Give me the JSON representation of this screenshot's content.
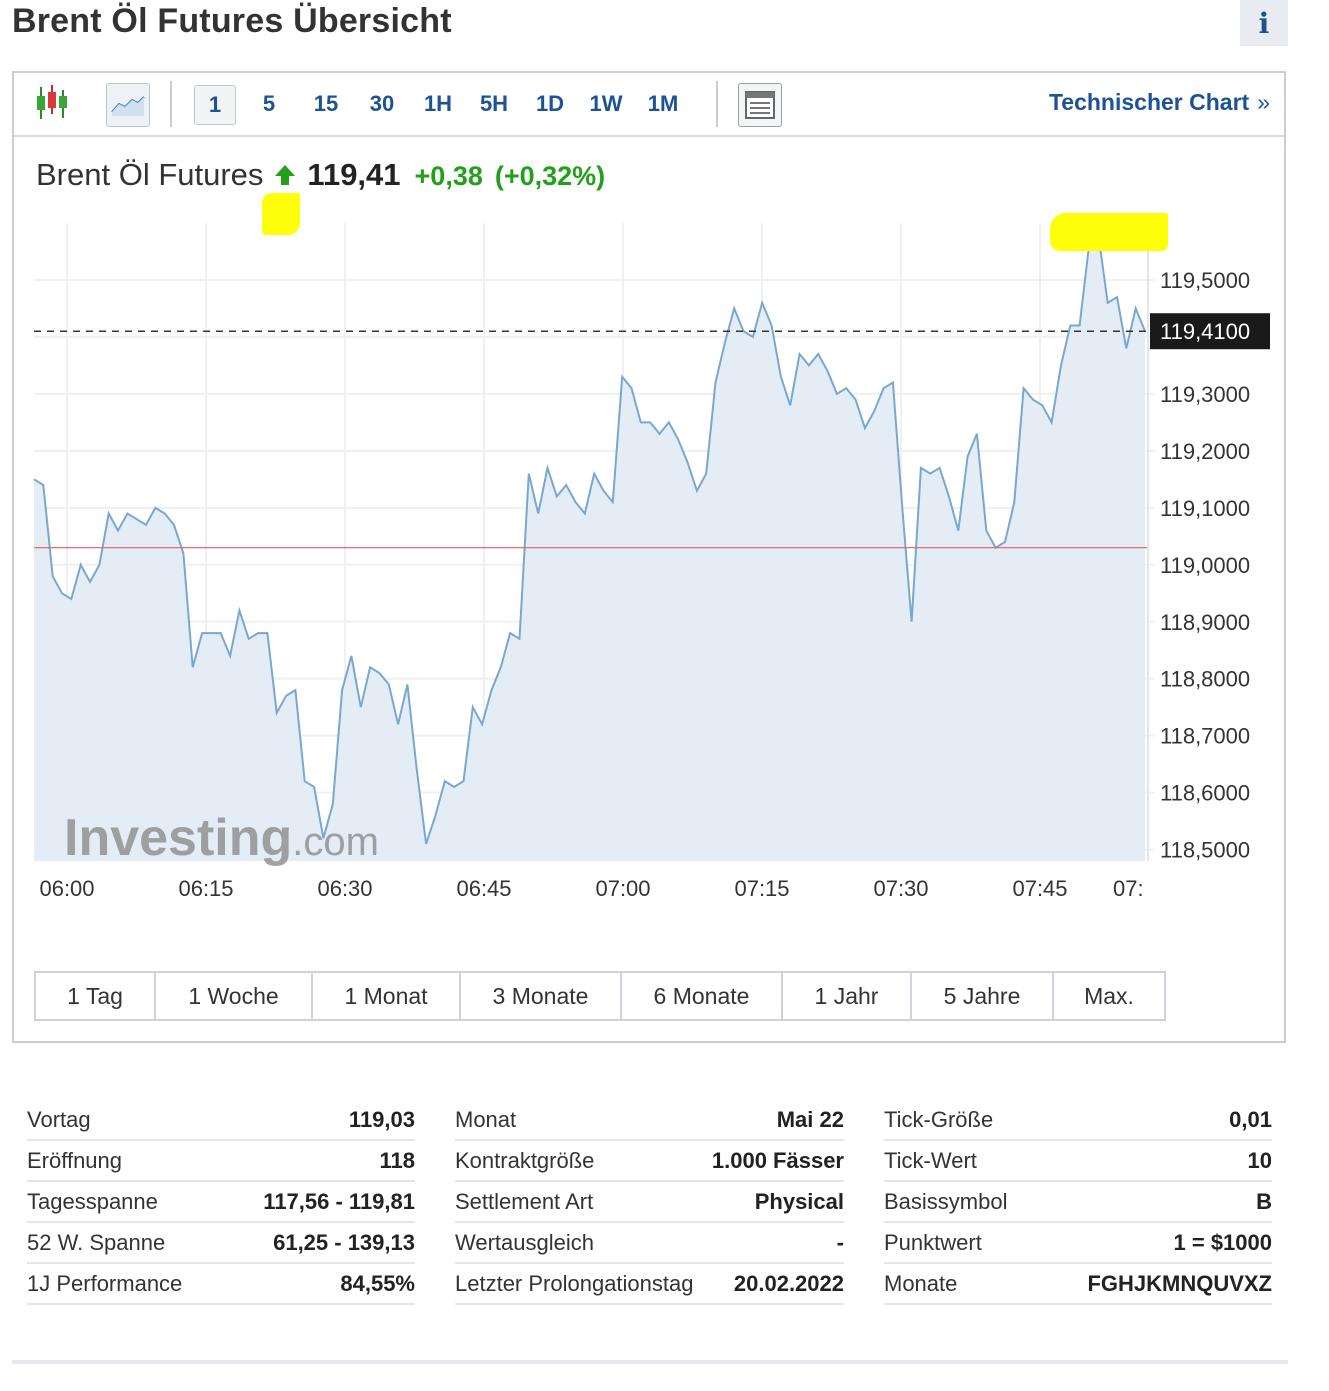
{
  "page": {
    "title": "Brent Öl Futures Übersicht",
    "info_label": "i"
  },
  "toolbar": {
    "intervals": [
      "1",
      "5",
      "15",
      "30",
      "1H",
      "5H",
      "1D",
      "1W",
      "1M"
    ],
    "active_interval": "1",
    "tech_chart_label": "Technischer Chart",
    "tech_chart_arrows": "»",
    "icons": [
      "candlestick-icon",
      "area-chart-icon",
      "table-view-icon"
    ]
  },
  "quote": {
    "name": "Brent Öl Futures",
    "last": "119,41",
    "change": "+0,38",
    "change_pct": "(+0,32%)",
    "direction": "up",
    "color_up": "#22a01c"
  },
  "chart_data": {
    "type": "area",
    "x_ticks": [
      "06:00",
      "06:15",
      "06:30",
      "06:45",
      "07:00",
      "07:15",
      "07:30",
      "07:45",
      "07:"
    ],
    "y_ticks": [
      "119,5000",
      "119,4000",
      "119,3000",
      "119,2000",
      "119,1000",
      "119,0000",
      "118,9000",
      "118,8000",
      "118,7000",
      "118,6000",
      "118,5000"
    ],
    "ylim": [
      118.48,
      119.6
    ],
    "last_price_label": "119,4100",
    "last_price": 119.41,
    "prev_close_line": 119.03,
    "watermark_brand": "Investing",
    "watermark_suffix": ".com",
    "colors": {
      "line": "#7aa7d0",
      "fill": "#e4edf6",
      "prev_close": "#e06060",
      "last_line": "#333333",
      "label_bg": "#1a1a1a"
    },
    "x_minutes_offset_start": -3.5,
    "series": [
      {
        "values": [
          119.15,
          119.14,
          118.98,
          118.95,
          118.94,
          119.0,
          118.97,
          119.0,
          119.09,
          119.06,
          119.09,
          119.08,
          119.07,
          119.1,
          119.09,
          119.07,
          119.02,
          118.82,
          118.88,
          118.88,
          118.88,
          118.84,
          118.92,
          118.87,
          118.88,
          118.88,
          118.74,
          118.77,
          118.78,
          118.62,
          118.61,
          118.52,
          118.58,
          118.78,
          118.84,
          118.75,
          118.82,
          118.81,
          118.79,
          118.72,
          118.79,
          118.64,
          118.51,
          118.56,
          118.62,
          118.61,
          118.62,
          118.75,
          118.72,
          118.78,
          118.82,
          118.88,
          118.87,
          119.16,
          119.09,
          119.17,
          119.12,
          119.14,
          119.11,
          119.09,
          119.16,
          119.13,
          119.11,
          119.33,
          119.31,
          119.25,
          119.25,
          119.23,
          119.25,
          119.22,
          119.18,
          119.13,
          119.16,
          119.32,
          119.39,
          119.45,
          119.41,
          119.4,
          119.46,
          119.42,
          119.33,
          119.28,
          119.37,
          119.35,
          119.37,
          119.34,
          119.3,
          119.31,
          119.29,
          119.24,
          119.27,
          119.31,
          119.32,
          119.1,
          118.9,
          119.17,
          119.16,
          119.17,
          119.12,
          119.06,
          119.19,
          119.23,
          119.06,
          119.03,
          119.04,
          119.11,
          119.31,
          119.29,
          119.28,
          119.25,
          119.35,
          119.42,
          119.42,
          119.56,
          119.58,
          119.46,
          119.47,
          119.38,
          119.45,
          119.41
        ]
      }
    ]
  },
  "periods": [
    "1 Tag",
    "1 Woche",
    "1 Monat",
    "3 Monate",
    "6 Monate",
    "1 Jahr",
    "5 Jahre",
    "Max."
  ],
  "stats": {
    "col1": [
      {
        "label": "Vortag",
        "value": "119,03"
      },
      {
        "label": "Eröffnung",
        "value": "118"
      },
      {
        "label": "Tagesspanne",
        "value": "117,56 - 119,81"
      },
      {
        "label": "52 W. Spanne",
        "value": "61,25 - 139,13"
      },
      {
        "label": "1J Performance",
        "value": "84,55%"
      }
    ],
    "col2": [
      {
        "label": "Monat",
        "value": "Mai 22"
      },
      {
        "label": "Kontraktgröße",
        "value": "1.000 Fässer"
      },
      {
        "label": "Settlement Art",
        "value": "Physical"
      },
      {
        "label": "Wertausgleich",
        "value": "-"
      },
      {
        "label": "Letzter Prolongationstag",
        "value": "20.02.2022"
      }
    ],
    "col3": [
      {
        "label": "Tick-Größe",
        "value": "0,01"
      },
      {
        "label": "Tick-Wert",
        "value": "10"
      },
      {
        "label": "Basissymbol",
        "value": "B"
      },
      {
        "label": "Punktwert",
        "value": "1 = $1000"
      },
      {
        "label": "Monate",
        "value": "FGHJKMNQUVXZ"
      }
    ]
  }
}
